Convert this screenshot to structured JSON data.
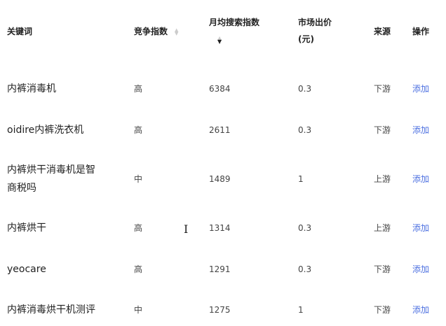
{
  "headers": {
    "keyword": "关键词",
    "competition": "竞争指数",
    "monthly_search": "月均搜索指数",
    "market_bid_line1": "市场出价",
    "market_bid_line2": "(元)",
    "source": "来源",
    "action": "操作"
  },
  "rows": [
    {
      "keyword": "内裤消毒机",
      "competition": "高",
      "monthly_search": "6384",
      "bid": "0.3",
      "source": "下游",
      "action": "添加"
    },
    {
      "keyword": "oidire内裤洗衣机",
      "competition": "高",
      "monthly_search": "2611",
      "bid": "0.3",
      "source": "下游",
      "action": "添加"
    },
    {
      "keyword": "内裤烘干消毒机是智商税吗",
      "keyword_line1": "内裤烘干消毒机是智",
      "keyword_line2": "商税吗",
      "competition": "中",
      "monthly_search": "1489",
      "bid": "1",
      "source": "上游",
      "action": "添加"
    },
    {
      "keyword": "内裤烘干",
      "competition": "高",
      "monthly_search": "1314",
      "bid": "0.3",
      "source": "上游",
      "action": "添加"
    },
    {
      "keyword": "yeocare",
      "competition": "高",
      "monthly_search": "1291",
      "bid": "0.3",
      "source": "下游",
      "action": "添加"
    },
    {
      "keyword": "内裤消毒烘干机测评",
      "competition": "中",
      "monthly_search": "1275",
      "bid": "1",
      "source": "下游",
      "action": "添加"
    }
  ],
  "colors": {
    "link": "#4a6ee0",
    "text": "#444"
  }
}
